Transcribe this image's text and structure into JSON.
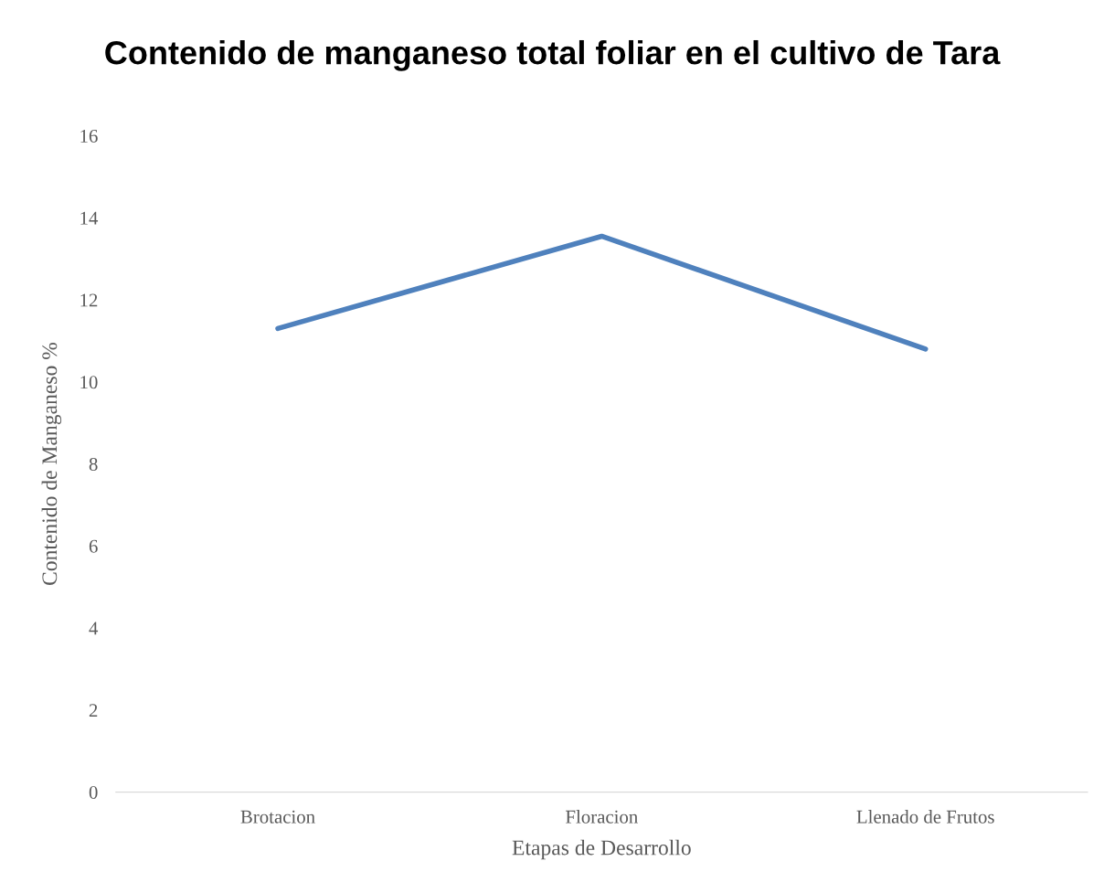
{
  "chart_data": {
    "type": "line",
    "title": "Contenido de manganeso total foliar en el cultivo de Tara",
    "xlabel": "Etapas de Desarrollo",
    "ylabel": "Contenido de Manganeso %",
    "categories": [
      "Brotacion",
      "Floracion",
      "Llenado de Frutos"
    ],
    "series": [
      {
        "color": "#4f81bd",
        "values": [
          11.3,
          13.55,
          10.8
        ]
      }
    ],
    "ylim": [
      0,
      16
    ],
    "yticks": [
      0,
      2,
      4,
      6,
      8,
      10,
      12,
      14,
      16
    ],
    "grid": false,
    "marker": "none",
    "line_style": "solid"
  }
}
